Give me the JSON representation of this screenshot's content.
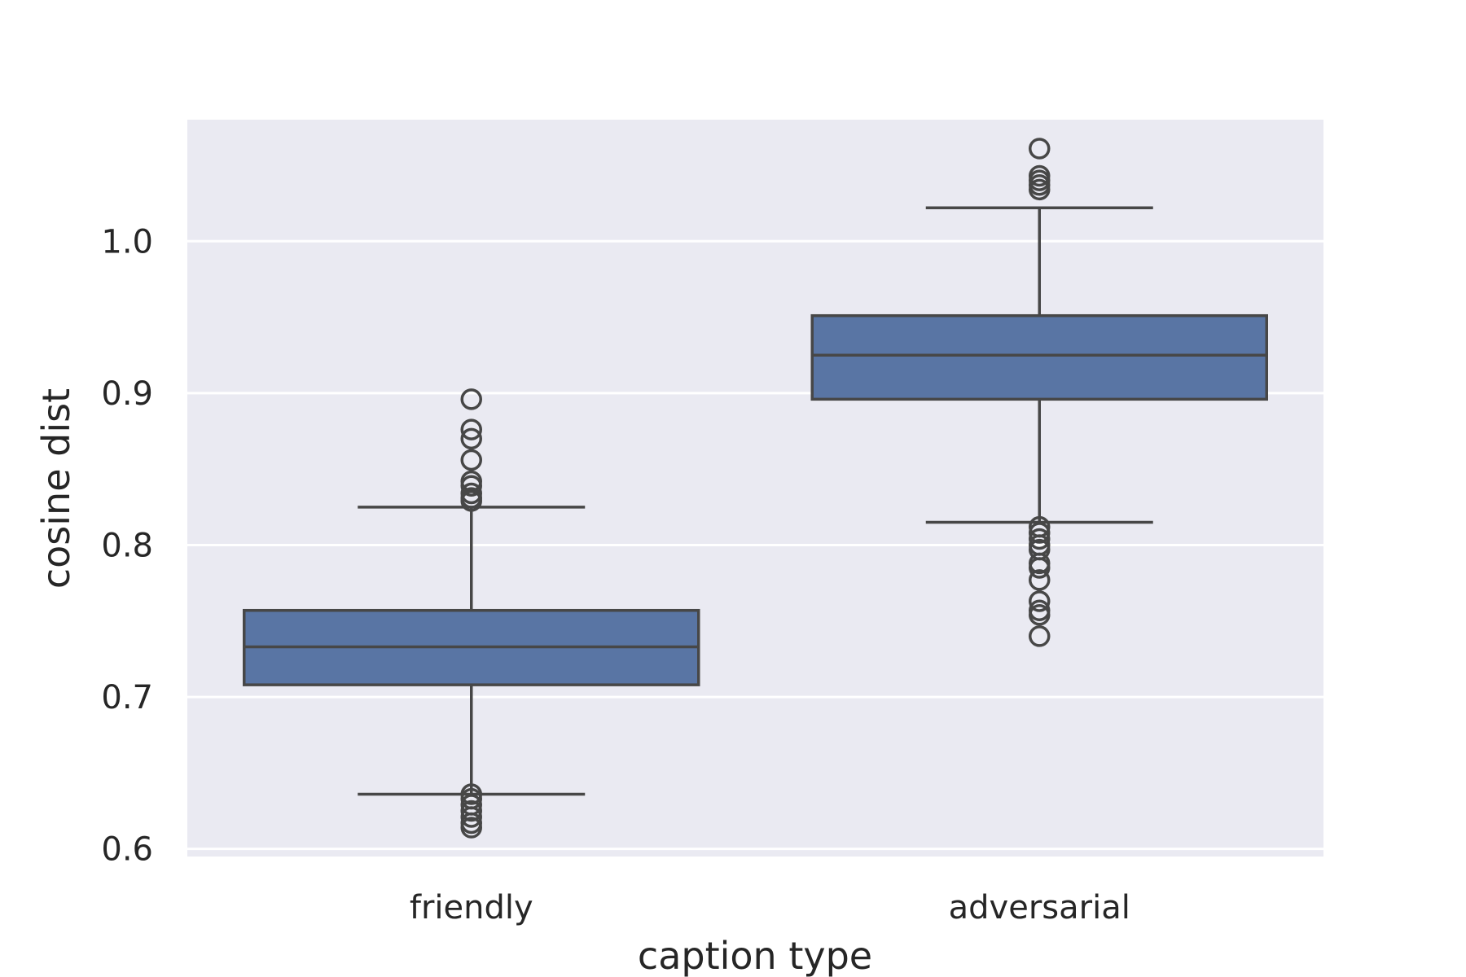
{
  "chart_data": {
    "type": "box",
    "title": "",
    "xlabel": "caption type",
    "ylabel": "cosine dist",
    "categories": [
      "friendly",
      "adversarial"
    ],
    "ylim": [
      0.595,
      1.08
    ],
    "yticks": [
      0.6,
      0.7,
      0.8,
      0.9,
      1.0
    ],
    "ytick_labels": [
      "0.6",
      "0.7",
      "0.8",
      "0.9",
      "1.0"
    ],
    "grid": true,
    "legend": "none",
    "box_color": "#5975a4",
    "line_color": "#474747",
    "background_color": "#eaeaf2",
    "boxes": [
      {
        "category": "friendly",
        "whisker_low": 0.636,
        "q1": 0.708,
        "median": 0.733,
        "q3": 0.757,
        "whisker_high": 0.825,
        "outliers": [
          0.896,
          0.876,
          0.87,
          0.856,
          0.842,
          0.839,
          0.834,
          0.831,
          0.829,
          0.636,
          0.633,
          0.629,
          0.625,
          0.621,
          0.617,
          0.614
        ]
      },
      {
        "category": "adversarial",
        "whisker_low": 0.815,
        "q1": 0.896,
        "median": 0.925,
        "q3": 0.951,
        "whisker_high": 1.022,
        "outliers": [
          1.061,
          1.043,
          1.04,
          1.037,
          1.034,
          0.812,
          0.808,
          0.804,
          0.8,
          0.797,
          0.788,
          0.785,
          0.777,
          0.763,
          0.757,
          0.754,
          0.74
        ]
      }
    ]
  }
}
